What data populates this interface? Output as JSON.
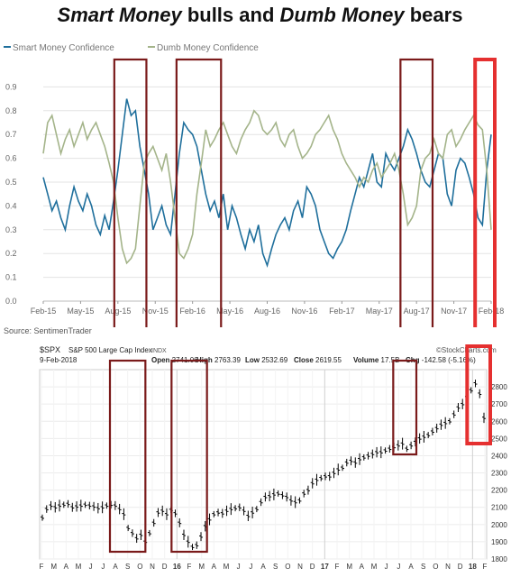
{
  "title": {
    "part1": "Smart Money",
    "part2": " bulls and ",
    "part3": "Dumb Money",
    "part4": " bears"
  },
  "source": "Source: SentimenTrader",
  "chart_data": [
    {
      "type": "line",
      "legend_position": "top-left",
      "ylim": [
        0,
        1.0
      ],
      "yticks": [
        "0.0",
        "0.1",
        "0.2",
        "0.3",
        "0.4",
        "0.5",
        "0.6",
        "0.7",
        "0.8",
        "0.9"
      ],
      "xticks": [
        "Feb-15",
        "May-15",
        "Aug-15",
        "Nov-15",
        "Feb-16",
        "May-16",
        "Aug-16",
        "Nov-16",
        "Feb-17",
        "May-17",
        "Aug-17",
        "Nov-17",
        "Feb-18"
      ],
      "grid": true,
      "series": [
        {
          "name": "Smart Money Confidence",
          "color": "#1f6f9c",
          "values": [
            0.52,
            0.45,
            0.38,
            0.42,
            0.35,
            0.3,
            0.4,
            0.48,
            0.42,
            0.38,
            0.45,
            0.4,
            0.32,
            0.28,
            0.36,
            0.3,
            0.42,
            0.55,
            0.7,
            0.85,
            0.78,
            0.8,
            0.65,
            0.55,
            0.45,
            0.3,
            0.35,
            0.4,
            0.32,
            0.28,
            0.45,
            0.62,
            0.75,
            0.72,
            0.7,
            0.65,
            0.55,
            0.45,
            0.38,
            0.42,
            0.35,
            0.45,
            0.3,
            0.4,
            0.35,
            0.28,
            0.22,
            0.3,
            0.25,
            0.32,
            0.2,
            0.15,
            0.22,
            0.28,
            0.32,
            0.35,
            0.3,
            0.38,
            0.42,
            0.35,
            0.48,
            0.45,
            0.4,
            0.3,
            0.25,
            0.2,
            0.18,
            0.22,
            0.25,
            0.3,
            0.38,
            0.45,
            0.52,
            0.48,
            0.55,
            0.62,
            0.5,
            0.48,
            0.62,
            0.58,
            0.55,
            0.6,
            0.65,
            0.72,
            0.68,
            0.62,
            0.55,
            0.5,
            0.48,
            0.55,
            0.62,
            0.6,
            0.45,
            0.4,
            0.55,
            0.6,
            0.58,
            0.52,
            0.45,
            0.35,
            0.32,
            0.55,
            0.7
          ]
        },
        {
          "name": "Dumb Money Confidence",
          "color": "#a4b48a",
          "values": [
            0.62,
            0.75,
            0.78,
            0.7,
            0.62,
            0.68,
            0.72,
            0.65,
            0.7,
            0.75,
            0.68,
            0.72,
            0.75,
            0.7,
            0.65,
            0.58,
            0.5,
            0.35,
            0.22,
            0.16,
            0.18,
            0.22,
            0.4,
            0.58,
            0.62,
            0.65,
            0.6,
            0.55,
            0.62,
            0.5,
            0.35,
            0.2,
            0.18,
            0.22,
            0.28,
            0.45,
            0.58,
            0.72,
            0.65,
            0.68,
            0.72,
            0.75,
            0.7,
            0.65,
            0.62,
            0.68,
            0.72,
            0.75,
            0.8,
            0.78,
            0.72,
            0.7,
            0.72,
            0.75,
            0.68,
            0.65,
            0.7,
            0.72,
            0.65,
            0.6,
            0.62,
            0.65,
            0.7,
            0.72,
            0.75,
            0.78,
            0.72,
            0.68,
            0.62,
            0.58,
            0.55,
            0.52,
            0.48,
            0.52,
            0.5,
            0.55,
            0.58,
            0.52,
            0.55,
            0.58,
            0.62,
            0.55,
            0.45,
            0.32,
            0.35,
            0.4,
            0.55,
            0.6,
            0.62,
            0.68,
            0.62,
            0.6,
            0.7,
            0.72,
            0.65,
            0.68,
            0.72,
            0.75,
            0.78,
            0.74,
            0.72,
            0.55,
            0.3
          ]
        }
      ],
      "highlights": [
        {
          "from": "Aug-15",
          "to": "Oct-15",
          "color": "#7a1a1a"
        },
        {
          "from": "Jan-16",
          "to": "Apr-16",
          "color": "#7a1a1a"
        },
        {
          "from": "Jul-17",
          "to": "Sep-17",
          "color": "#7a1a1a"
        },
        {
          "from": "Jan-18",
          "to": "Feb-18",
          "color": "#e53030"
        }
      ]
    },
    {
      "type": "ohlc",
      "header": {
        "symbol": "$SPX",
        "name": "S&P 500 Large Cap Index",
        "exchange": "INDX",
        "credit": "©StockCharts.com",
        "date": "9-Feb-2018",
        "open_label": "Open",
        "open": "2741.06",
        "high_label": "High",
        "high": "2763.39",
        "low_label": "Low",
        "low": "2532.69",
        "close_label": "Close",
        "close": "2619.55",
        "volume_label": "Volume",
        "volume": "17.5B",
        "chg_label": "Chg",
        "chg": "-142.58 (-5.16%)"
      },
      "ylim": [
        1800,
        2900
      ],
      "yticks": [
        "1800",
        "1900",
        "2000",
        "2100",
        "2200",
        "2300",
        "2400",
        "2500",
        "2600",
        "2700",
        "2800"
      ],
      "xticks": [
        "F",
        "M",
        "A",
        "M",
        "J",
        "J",
        "A",
        "S",
        "O",
        "N",
        "D",
        "16",
        "F",
        "M",
        "A",
        "M",
        "J",
        "J",
        "A",
        "S",
        "O",
        "N",
        "D",
        "17",
        "F",
        "M",
        "A",
        "M",
        "J",
        "J",
        "A",
        "S",
        "O",
        "N",
        "D",
        "18",
        "F"
      ],
      "bold_xticks": [
        "16",
        "17",
        "18"
      ],
      "values": [
        2040,
        2090,
        2110,
        2100,
        2110,
        2115,
        2120,
        2100,
        2105,
        2110,
        2115,
        2110,
        2105,
        2095,
        2100,
        2110,
        2115,
        2110,
        2090,
        2060,
        1980,
        1950,
        1920,
        1940,
        1900,
        1950,
        2010,
        2070,
        2080,
        2060,
        2085,
        2065,
        2010,
        1940,
        1900,
        1870,
        1880,
        1930,
        1990,
        2030,
        2060,
        2070,
        2065,
        2080,
        2090,
        2095,
        2100,
        2080,
        2050,
        2070,
        2090,
        2130,
        2160,
        2165,
        2175,
        2180,
        2170,
        2160,
        2140,
        2130,
        2140,
        2180,
        2200,
        2240,
        2260,
        2270,
        2280,
        2280,
        2300,
        2320,
        2330,
        2360,
        2370,
        2360,
        2380,
        2390,
        2400,
        2410,
        2420,
        2420,
        2430,
        2440,
        2450,
        2460,
        2470,
        2440,
        2460,
        2480,
        2500,
        2510,
        2520,
        2540,
        2560,
        2580,
        2590,
        2600,
        2640,
        2680,
        2700,
        2740,
        2780,
        2820,
        2760,
        2620
      ],
      "highlights": [
        {
          "from": "Aug-15",
          "to": "Oct-15",
          "color": "#7a1a1a"
        },
        {
          "from": "Jan-16",
          "to": "Mar-16",
          "color": "#7a1a1a"
        },
        {
          "from": "Jul-17",
          "to": "Aug-17",
          "color": "#7a1a1a"
        },
        {
          "from": "Jan-18",
          "to": "Feb-18",
          "color": "#e53030"
        }
      ]
    }
  ]
}
